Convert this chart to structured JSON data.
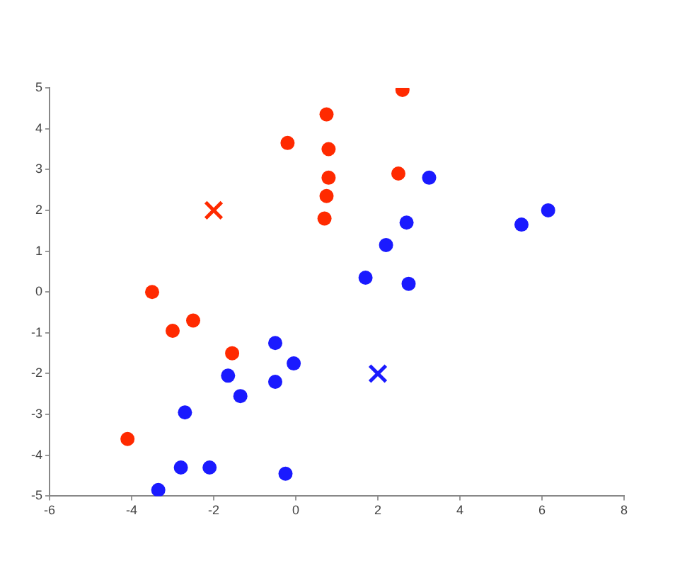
{
  "chart_data": {
    "type": "scatter",
    "xlim": [
      -6,
      8
    ],
    "ylim": [
      -5,
      5
    ],
    "xticks": [
      -6,
      -4,
      -2,
      0,
      2,
      4,
      6,
      8
    ],
    "yticks": [
      -5,
      -4,
      -3,
      -2,
      -1,
      0,
      1,
      2,
      3,
      4,
      5
    ],
    "grid": false,
    "legend": false,
    "series": [
      {
        "color": "#ff2a00",
        "marker": "circle",
        "x": [
          -4.1,
          -3.5,
          -3,
          -2.5,
          -1.55,
          -0.2,
          0.75,
          0.8,
          0.8,
          0.75,
          0.7,
          2.6,
          2.5
        ],
        "values": [
          -3.6,
          0,
          -0.95,
          -0.7,
          -1.5,
          3.65,
          4.35,
          3.5,
          2.8,
          2.35,
          1.8,
          4.95,
          2.9
        ]
      },
      {
        "color": "#1a1aff",
        "marker": "circle",
        "x": [
          -3.35,
          -2.8,
          -2.1,
          -2.7,
          -1.65,
          -1.35,
          -0.5,
          -0.5,
          -0.05,
          -0.25,
          1.7,
          2.75,
          2.2,
          2.7,
          3.25,
          5.5,
          6.15
        ],
        "values": [
          -4.85,
          -4.3,
          -4.3,
          -2.95,
          -2.05,
          -2.55,
          -1.25,
          -2.2,
          -1.75,
          -4.45,
          0.35,
          0.2,
          1.15,
          1.7,
          2.8,
          1.65,
          2.0
        ]
      },
      {
        "color": "#ff2a00",
        "marker": "cross",
        "x": [
          -2
        ],
        "values": [
          2
        ]
      },
      {
        "color": "#1a1aff",
        "marker": "cross",
        "x": [
          2
        ],
        "values": [
          -2
        ]
      }
    ]
  }
}
